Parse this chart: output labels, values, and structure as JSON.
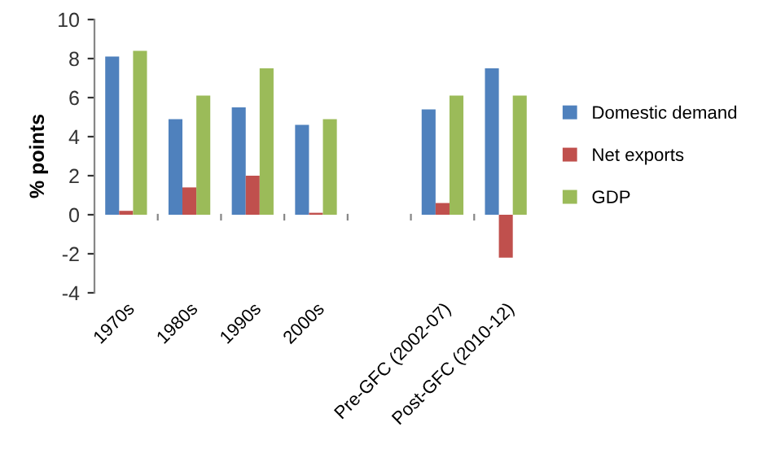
{
  "chart_data": {
    "type": "bar",
    "ylabel": "% points",
    "categories": [
      "1970s",
      "1980s",
      "1990s",
      "2000s",
      null,
      "Pre-GFC (2002-07)",
      "Post-GFC (2010-12)"
    ],
    "series": [
      {
        "name": "Domestic demand",
        "color": "#4f81bd",
        "values": [
          8.1,
          4.9,
          5.5,
          4.6,
          null,
          5.4,
          7.5
        ]
      },
      {
        "name": "Net exports",
        "color": "#c0504d",
        "values": [
          0.2,
          1.4,
          2.0,
          0.1,
          null,
          0.6,
          -2.2
        ]
      },
      {
        "name": "GDP",
        "color": "#9bbb59",
        "values": [
          8.4,
          6.1,
          7.5,
          4.9,
          null,
          6.1,
          6.1
        ]
      }
    ],
    "ylim": [
      -4,
      10
    ],
    "yticks": [
      -4,
      -2,
      0,
      2,
      4,
      6,
      8,
      10
    ],
    "grid": false,
    "legend": "right"
  }
}
